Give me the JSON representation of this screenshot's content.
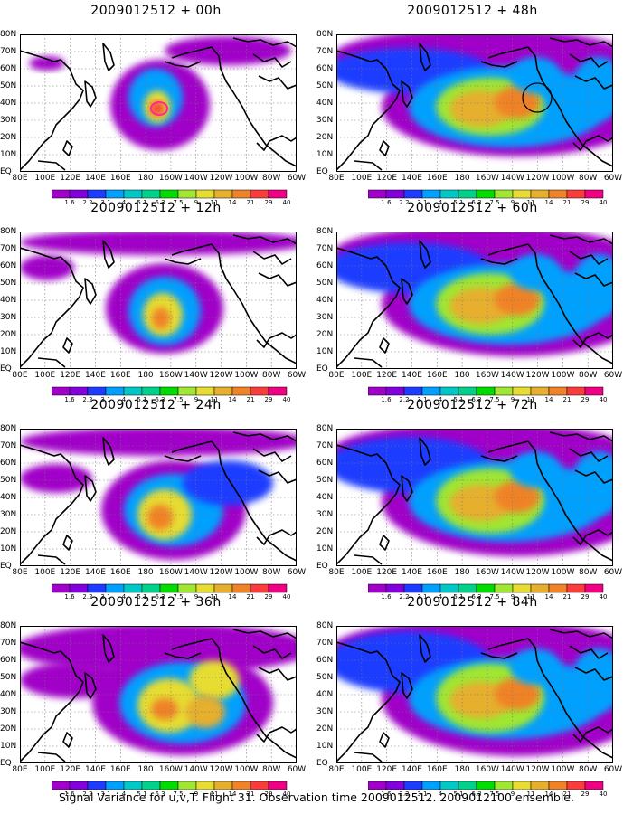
{
  "panels": [
    {
      "title": "2009012512 + 00h",
      "stage": 0,
      "circle": false
    },
    {
      "title": "2009012512 + 48h",
      "stage": 4,
      "circle": true
    },
    {
      "title": "2009012512 + 12h",
      "stage": 1,
      "circle": false
    },
    {
      "title": "2009012512 + 60h",
      "stage": 5,
      "circle": false
    },
    {
      "title": "2009012512 + 24h",
      "stage": 2,
      "circle": false
    },
    {
      "title": "2009012512 + 72h",
      "stage": 6,
      "circle": false
    },
    {
      "title": "2009012512 + 36h",
      "stage": 3,
      "circle": false
    },
    {
      "title": "2009012512 + 84h",
      "stage": 7,
      "circle": false
    }
  ],
  "lat_labels": [
    "80N",
    "70N",
    "60N",
    "50N",
    "40N",
    "30N",
    "20N",
    "10N",
    "EQ"
  ],
  "lon_labels": [
    "80E",
    "100E",
    "120E",
    "140E",
    "160E",
    "180",
    "160W",
    "140W",
    "120W",
    "100W",
    "80W",
    "60W"
  ],
  "colorbar": {
    "labels": [
      "1.6",
      "2.2",
      "3.1",
      "4",
      "5.1",
      "6.3",
      "7.5",
      "9",
      "11",
      "14",
      "21",
      "29",
      "40"
    ],
    "colors": [
      "#a000c8",
      "#8200dc",
      "#1e3cff",
      "#00a0ff",
      "#00c8c8",
      "#00d28c",
      "#00dc00",
      "#a0e632",
      "#e6dc32",
      "#e6af2d",
      "#f08228",
      "#fa3c3c",
      "#f00082"
    ]
  },
  "caption": "Signal Variance for u,v,T. Flight 31. Observation time 2009012512. 2009012100 ensemble."
}
